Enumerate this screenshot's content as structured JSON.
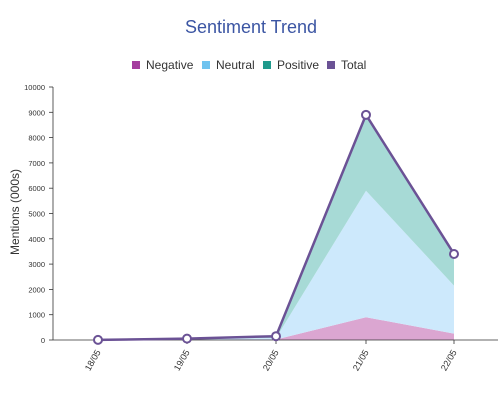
{
  "chart_data": {
    "type": "area",
    "title": "Sentiment Trend",
    "xlabel": "",
    "ylabel": "Mentions (000s)",
    "categories": [
      "18/05",
      "19/05",
      "20/05",
      "21/05",
      "22/05"
    ],
    "ylim": [
      0,
      10000
    ],
    "yticks": [
      0,
      1000,
      2000,
      3000,
      4000,
      5000,
      6000,
      7000,
      8000,
      9000,
      10000
    ],
    "stacked": true,
    "grid": false,
    "legend_position": "top",
    "series": [
      {
        "name": "Negative",
        "values": [
          0,
          10,
          20,
          900,
          250
        ],
        "color": "#a53e9f",
        "fill": "#dba6d1"
      },
      {
        "name": "Neutral",
        "values": [
          5,
          40,
          60,
          5000,
          1900
        ],
        "color": "#6fc3ef",
        "fill": "#cde9fc"
      },
      {
        "name": "Positive",
        "values": [
          0,
          5,
          70,
          3000,
          1250
        ],
        "color": "#1f9a8c",
        "fill": "#a7dad6"
      },
      {
        "name": "Total",
        "values": [
          5,
          55,
          150,
          8900,
          3400
        ],
        "color": "#6b5295"
      }
    ]
  }
}
